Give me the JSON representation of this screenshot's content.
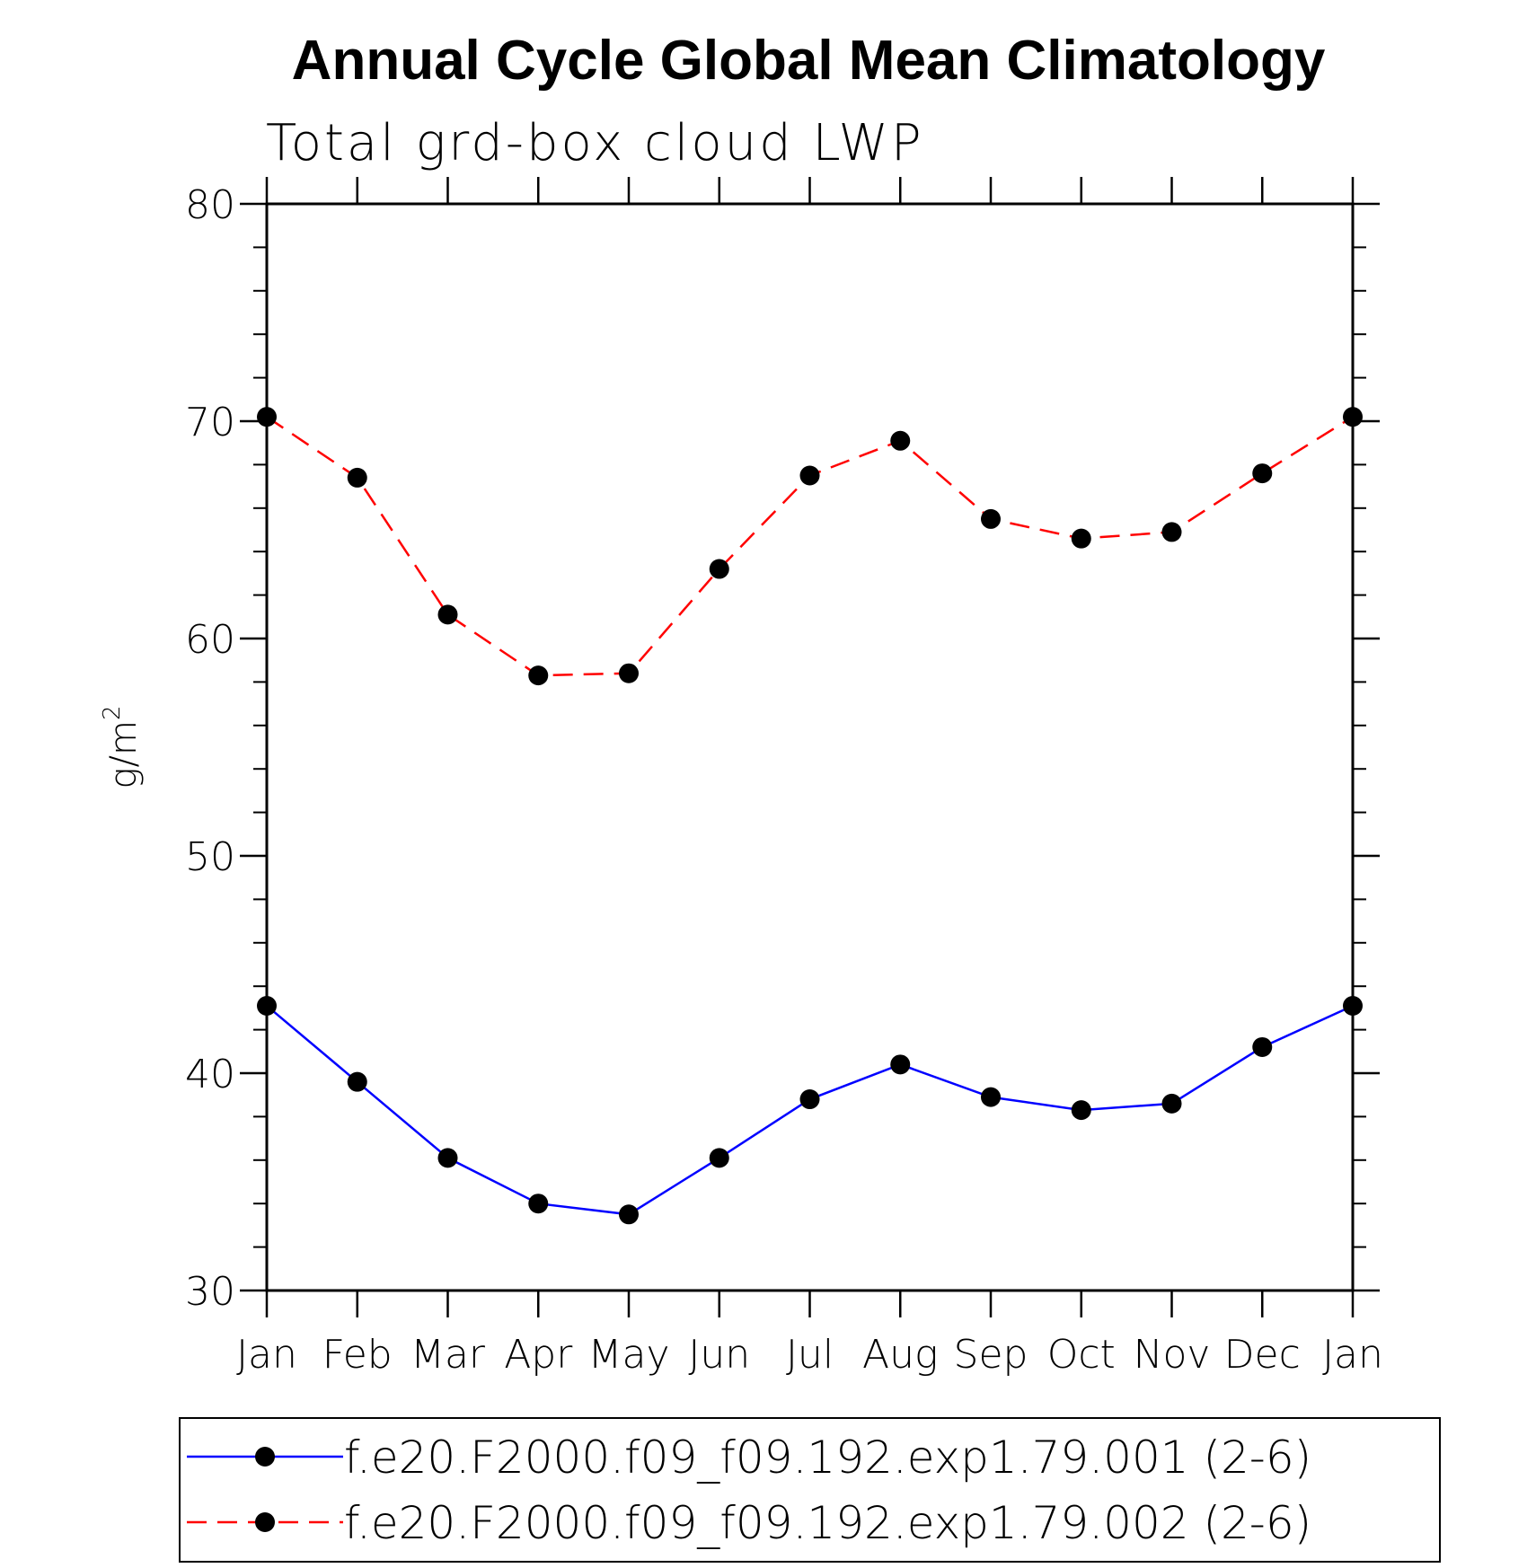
{
  "chart_data": {
    "type": "line",
    "title": "Annual Cycle Global Mean Climatology",
    "subtitle": "Total grd-box cloud LWP",
    "xlabel": "",
    "ylabel": "g/m",
    "ylabel_superscript": "2",
    "ylim": [
      30,
      80
    ],
    "yticks": [
      30,
      40,
      50,
      60,
      70,
      80
    ],
    "yticks_minor_step": 2,
    "categories": [
      "Jan",
      "Feb",
      "Mar",
      "Apr",
      "May",
      "Jun",
      "Jul",
      "Aug",
      "Sep",
      "Oct",
      "Nov",
      "Dec",
      "Jan"
    ],
    "grid": false,
    "legend_position": "bottom",
    "series": [
      {
        "name": "f.e20.F2000.f09_f09.192.exp1.79.001 (2-6)",
        "color": "#0000ff",
        "line_style": "solid",
        "marker": "filled-circle",
        "marker_color": "#000000",
        "values": [
          43.1,
          39.6,
          36.1,
          34.0,
          33.5,
          36.1,
          38.8,
          40.4,
          38.9,
          38.3,
          38.6,
          41.2,
          43.1
        ]
      },
      {
        "name": "f.e20.F2000.f09_f09.192.exp1.79.002 (2-6)",
        "color": "#ff0000",
        "line_style": "dashed",
        "marker": "filled-circle",
        "marker_color": "#000000",
        "values": [
          70.2,
          67.4,
          61.1,
          58.3,
          58.4,
          63.2,
          67.5,
          69.1,
          65.5,
          64.6,
          64.9,
          67.6,
          70.2
        ]
      }
    ]
  }
}
